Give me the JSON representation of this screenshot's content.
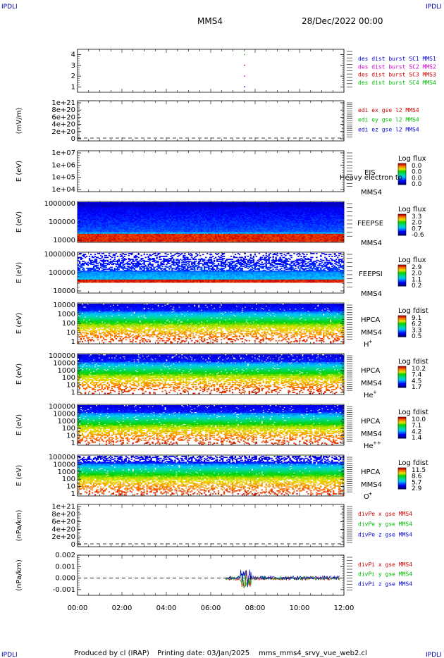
{
  "header": {
    "corner_label": "IPDLI",
    "spacecraft": "MMS4",
    "date": "28/Dec/2022 00:00"
  },
  "footer": {
    "produced": "Produced by cl (IRAP)",
    "printing_date": "Printing date: 03/Jan/2025",
    "filename": "mms_mms4_srvy_vue_web2.cl"
  },
  "colors": {
    "blue": "#0000cc",
    "magenta": "#cc00cc",
    "red": "#cc0000",
    "green": "#00bb00"
  },
  "chart_data": [
    {
      "type": "scatter",
      "ylim": [
        0.5,
        4.5
      ],
      "yticks": [
        "1",
        "2",
        "3",
        "4"
      ],
      "legend": [
        {
          "text": "des dist burst SC1 MMS1",
          "color": "#0000cc"
        },
        {
          "text": "des dist burst SC2 MMS2",
          "color": "#cc00cc"
        },
        {
          "text": "des dist burst SC3 MMS3",
          "color": "#cc0000"
        },
        {
          "text": "des dist burst SC4 MMS4",
          "color": "#00bb00"
        }
      ],
      "points": [
        {
          "x": "07:30",
          "y": 4,
          "color": "#00bb00"
        },
        {
          "x": "07:30",
          "y": 3,
          "color": "#cc0000"
        },
        {
          "x": "07:30",
          "y": 2,
          "color": "#cc00cc"
        },
        {
          "x": "07:30",
          "y": 1,
          "color": "#0000cc"
        }
      ]
    },
    {
      "type": "line",
      "ylabel": "(mV/m)",
      "ylim": [
        0,
        1e+21
      ],
      "yticks": [
        "1e+21",
        "8e+20",
        "6e+20",
        "4e+20",
        "2e+20",
        "0"
      ],
      "legend": [
        {
          "text": "edi ex gse l2 MMS4",
          "color": "#cc0000"
        },
        {
          "text": "edi ey gse l2 MMS4",
          "color": "#00bb00"
        },
        {
          "text": "edi ez gse l2 MMS4",
          "color": "#0000cc"
        }
      ]
    },
    {
      "type": "heatmap",
      "ylabel": "E (eV)",
      "yticks": [
        "1e+07",
        "1e+06",
        "1e+05",
        "1e+04"
      ],
      "labels": [
        "EIS",
        "MMS4"
      ],
      "overlay_text": "Heavy electron to",
      "colorbar_title": "Log flux",
      "colorbar_ticks": [
        "0.0",
        "0.0",
        "0.0",
        "0.0"
      ]
    },
    {
      "type": "heatmap",
      "ylabel": "E (eV)",
      "yticks": [
        "1000000",
        "100000",
        "10000"
      ],
      "labels": [
        "FEEPSE",
        "MMS4"
      ],
      "colorbar_title": "Log flux",
      "colorbar_ticks": [
        "3.3",
        "2.0",
        "0.7",
        "-0.6"
      ]
    },
    {
      "type": "heatmap",
      "ylabel": "E (eV)",
      "yticks": [
        "1000000",
        "100000",
        "10000"
      ],
      "labels": [
        "FEEPSI",
        "MMS4"
      ],
      "colorbar_title": "Log flux",
      "colorbar_ticks": [
        "2.9",
        "2.0",
        "1.1",
        "0.2"
      ]
    },
    {
      "type": "heatmap",
      "ylabel": "E (eV)",
      "yticks": [
        "10000",
        "1000",
        "100",
        "10",
        "1"
      ],
      "labels": [
        "HPCA",
        "MMS4",
        "H",
        "+"
      ],
      "colorbar_title": "Log fdist",
      "colorbar_ticks": [
        "9.1",
        "6.2",
        "3.3",
        "0.5"
      ]
    },
    {
      "type": "heatmap",
      "ylabel": "E (eV)",
      "yticks": [
        "100000",
        "10000",
        "1000",
        "100",
        "10",
        "1"
      ],
      "labels": [
        "HPCA",
        "MMS4",
        "He",
        "+"
      ],
      "colorbar_title": "Log fdist",
      "colorbar_ticks": [
        "10.2",
        "7.4",
        "4.5",
        "1.7"
      ]
    },
    {
      "type": "heatmap",
      "ylabel": "E (eV)",
      "yticks": [
        "100000",
        "10000",
        "1000",
        "100",
        "10",
        "1"
      ],
      "labels": [
        "HPCA",
        "MMS4",
        "He",
        "++"
      ],
      "colorbar_title": "Log fdist",
      "colorbar_ticks": [
        "10.0",
        "7.1",
        "4.2",
        "1.4"
      ]
    },
    {
      "type": "heatmap",
      "ylabel": "E (eV)",
      "yticks": [
        "100000",
        "10000",
        "1000",
        "100",
        "10",
        "1"
      ],
      "labels": [
        "HPCA",
        "MMS4",
        "O",
        "+"
      ],
      "colorbar_title": "Log fdist",
      "colorbar_ticks": [
        "11.5",
        "8.6",
        "5.7",
        "2.9"
      ]
    },
    {
      "type": "line",
      "ylabel": "(nPa/km)",
      "ylim": [
        0,
        1e+21
      ],
      "yticks": [
        "1e+21",
        "8e+20",
        "6e+20",
        "4e+20",
        "2e+20",
        "0"
      ],
      "legend": [
        {
          "text": "divPe x gse MMS4",
          "color": "#cc0000"
        },
        {
          "text": "divPe y gse MMS4",
          "color": "#00bb00"
        },
        {
          "text": "divPe z gse MMS4",
          "color": "#0000cc"
        }
      ]
    },
    {
      "type": "line",
      "ylabel": "(nPa/km)",
      "ylim": [
        -0.0015,
        0.002
      ],
      "yticks": [
        "0.002",
        "0.001",
        "0.000",
        "-0.001"
      ],
      "legend": [
        {
          "text": "divPi x gse MMS4",
          "color": "#cc0000"
        },
        {
          "text": "divPi y gse MMS4",
          "color": "#00bb00"
        },
        {
          "text": "divPi z gse MMS4",
          "color": "#0000cc"
        }
      ],
      "data_start": "06:40",
      "data_end": "11:50"
    }
  ],
  "x_axis": {
    "ticks": [
      "00:00",
      "02:00",
      "04:00",
      "06:00",
      "08:00",
      "10:00",
      "12:00"
    ]
  }
}
